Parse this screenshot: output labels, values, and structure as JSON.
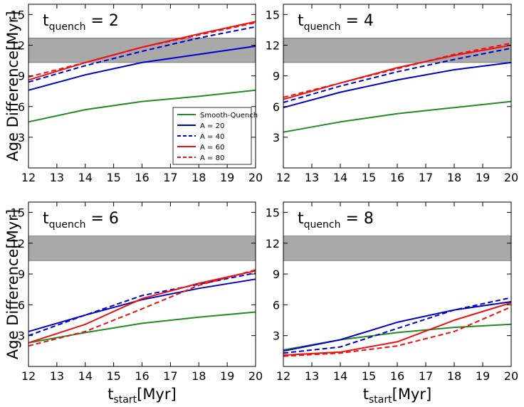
{
  "chart_data": {
    "type": "line",
    "ylabel": "Age Difference[Myr]",
    "xlabel": "t_start[Myr]",
    "xlabel_main": "t",
    "xlabel_sub": "start",
    "xlabel_unit": "[Myr]",
    "title_prefix": "t",
    "title_sub": "quench",
    "xlim": [
      12,
      20
    ],
    "ylim": [
      0,
      16
    ],
    "xticks": [
      12,
      13,
      14,
      15,
      16,
      17,
      18,
      19,
      20
    ],
    "yticks": [
      3,
      6,
      9,
      12,
      15
    ],
    "band": [
      10.3,
      12.7
    ],
    "band_color": "#a9a9a9",
    "legend": {
      "location": "center-right of top-left panel",
      "entries": [
        {
          "label": "Smooth-Quench",
          "color": "#228b22",
          "dash": "solid"
        },
        {
          "label": "A = 20",
          "color": "#0000cc",
          "dash": "solid"
        },
        {
          "label": "A = 40",
          "color": "#0000cc",
          "dash": "dashed"
        },
        {
          "label": "A = 60",
          "color": "#ee1111",
          "dash": "solid"
        },
        {
          "label": "A = 80",
          "color": "#ee1111",
          "dash": "dashed"
        }
      ]
    },
    "panels": [
      {
        "title": "t_quench = 2",
        "title_value": "= 2",
        "series": [
          {
            "name": "Smooth-Quench",
            "x": [
              12,
              14,
              16,
              18,
              20
            ],
            "y": [
              4.5,
              5.7,
              6.5,
              7.0,
              7.6
            ]
          },
          {
            "name": "A = 20",
            "x": [
              12,
              14,
              16,
              18,
              20
            ],
            "y": [
              7.6,
              9.1,
              10.3,
              11.1,
              11.9
            ]
          },
          {
            "name": "A = 40",
            "x": [
              12,
              14,
              16,
              18,
              20
            ],
            "y": [
              8.4,
              10.0,
              11.4,
              12.7,
              13.8
            ]
          },
          {
            "name": "A = 60",
            "x": [
              12,
              14,
              16,
              18,
              20
            ],
            "y": [
              8.6,
              10.3,
              11.8,
              13.1,
              14.3
            ]
          },
          {
            "name": "A = 80",
            "x": [
              12,
              14,
              16,
              18,
              20
            ],
            "y": [
              8.9,
              10.3,
              11.8,
              13.0,
              14.2
            ]
          }
        ]
      },
      {
        "title": "t_quench = 4",
        "title_value": "= 4",
        "series": [
          {
            "name": "Smooth-Quench",
            "x": [
              12,
              14,
              16,
              18,
              20
            ],
            "y": [
              3.5,
              4.5,
              5.3,
              5.9,
              6.5
            ]
          },
          {
            "name": "A = 20",
            "x": [
              12,
              14,
              16,
              18,
              20
            ],
            "y": [
              5.9,
              7.4,
              8.6,
              9.6,
              10.3
            ]
          },
          {
            "name": "A = 40",
            "x": [
              12,
              14,
              16,
              18,
              20
            ],
            "y": [
              6.4,
              8.0,
              9.4,
              10.6,
              11.7
            ]
          },
          {
            "name": "A = 60",
            "x": [
              12,
              14,
              16,
              18,
              20
            ],
            "y": [
              6.7,
              8.3,
              9.8,
              11.0,
              12.0
            ]
          },
          {
            "name": "A = 80",
            "x": [
              12,
              14,
              16,
              18,
              20
            ],
            "y": [
              6.9,
              8.3,
              9.7,
              11.1,
              12.2
            ]
          }
        ]
      },
      {
        "title": "t_quench = 6",
        "title_value": "= 6",
        "series": [
          {
            "name": "Smooth-Quench",
            "x": [
              12,
              14,
              16,
              18,
              20
            ],
            "y": [
              2.3,
              3.3,
              4.2,
              4.8,
              5.3
            ]
          },
          {
            "name": "A = 20",
            "x": [
              12,
              14,
              16,
              18,
              20
            ],
            "y": [
              3.4,
              5.0,
              6.5,
              7.6,
              8.5
            ]
          },
          {
            "name": "A = 40",
            "x": [
              12,
              14,
              16,
              18,
              20
            ],
            "y": [
              3.0,
              5.0,
              6.9,
              8.0,
              9.1
            ]
          },
          {
            "name": "A = 60",
            "x": [
              12,
              14,
              16,
              18,
              20
            ],
            "y": [
              2.3,
              4.1,
              6.6,
              8.1,
              9.3
            ]
          },
          {
            "name": "A = 80",
            "x": [
              12,
              14,
              16,
              18,
              20
            ],
            "y": [
              2.0,
              3.4,
              5.6,
              7.9,
              9.4
            ]
          }
        ]
      },
      {
        "title": "t_quench = 8",
        "title_value": "= 8",
        "series": [
          {
            "name": "Smooth-Quench",
            "x": [
              12,
              14,
              16,
              18,
              20
            ],
            "y": [
              1.6,
              2.6,
              3.3,
              3.8,
              4.1
            ]
          },
          {
            "name": "A = 20",
            "x": [
              12,
              14,
              16,
              18,
              20
            ],
            "y": [
              1.5,
              2.6,
              4.3,
              5.5,
              6.3
            ]
          },
          {
            "name": "A = 40",
            "x": [
              12,
              14,
              16,
              18,
              20
            ],
            "y": [
              1.3,
              1.9,
              3.7,
              5.5,
              6.7
            ]
          },
          {
            "name": "A = 60",
            "x": [
              12,
              14,
              16,
              18,
              20
            ],
            "y": [
              1.1,
              1.4,
              2.4,
              4.5,
              6.2
            ]
          },
          {
            "name": "A = 80",
            "x": [
              12,
              14,
              16,
              18,
              20
            ],
            "y": [
              1.0,
              1.3,
              2.0,
              3.4,
              5.8
            ]
          }
        ]
      }
    ]
  }
}
